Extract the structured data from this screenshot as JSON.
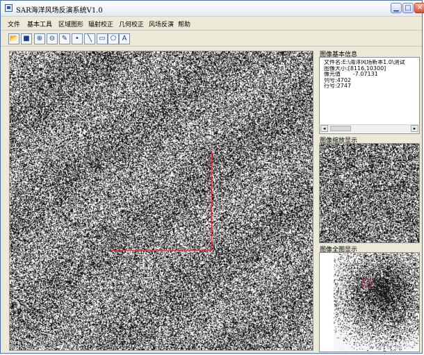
{
  "window": {
    "title": "SAR海洋风场反演系统V1.0"
  },
  "menu": {
    "items": [
      "文件",
      "基本工具",
      "区域图形",
      "辐射校正",
      "几何校正",
      "风场反演",
      "帮助"
    ]
  },
  "toolbar": {
    "items": [
      {
        "name": "open-file-icon",
        "glyph": "📂"
      },
      {
        "name": "save-icon",
        "glyph": "■"
      },
      {
        "name": "zoom-in-icon",
        "glyph": "⊕"
      },
      {
        "name": "zoom-out-icon",
        "glyph": "⊖"
      },
      {
        "name": "pencil-icon",
        "glyph": "✎"
      },
      {
        "name": "point-icon",
        "glyph": "•"
      },
      {
        "name": "line-icon",
        "glyph": "╲"
      },
      {
        "name": "rectangle-icon",
        "glyph": "▭"
      },
      {
        "name": "polygon-icon",
        "glyph": "⬠"
      },
      {
        "name": "text-icon",
        "glyph": "A"
      }
    ]
  },
  "info_panel": {
    "title": "图像基本信息",
    "lines": [
      "文件名:E:\\海洋风场新本1.0\\测试",
      "图像大小:[8116,10300]",
      "像元值       -7.07131",
      "列号:4702",
      "行号:2747"
    ]
  },
  "zoom_panel": {
    "title": "图像缩放显示"
  },
  "overview_panel": {
    "title": "图像全图显示"
  },
  "colors": {
    "roi": "#e0304a",
    "title_accent": "#2f5aa8"
  }
}
